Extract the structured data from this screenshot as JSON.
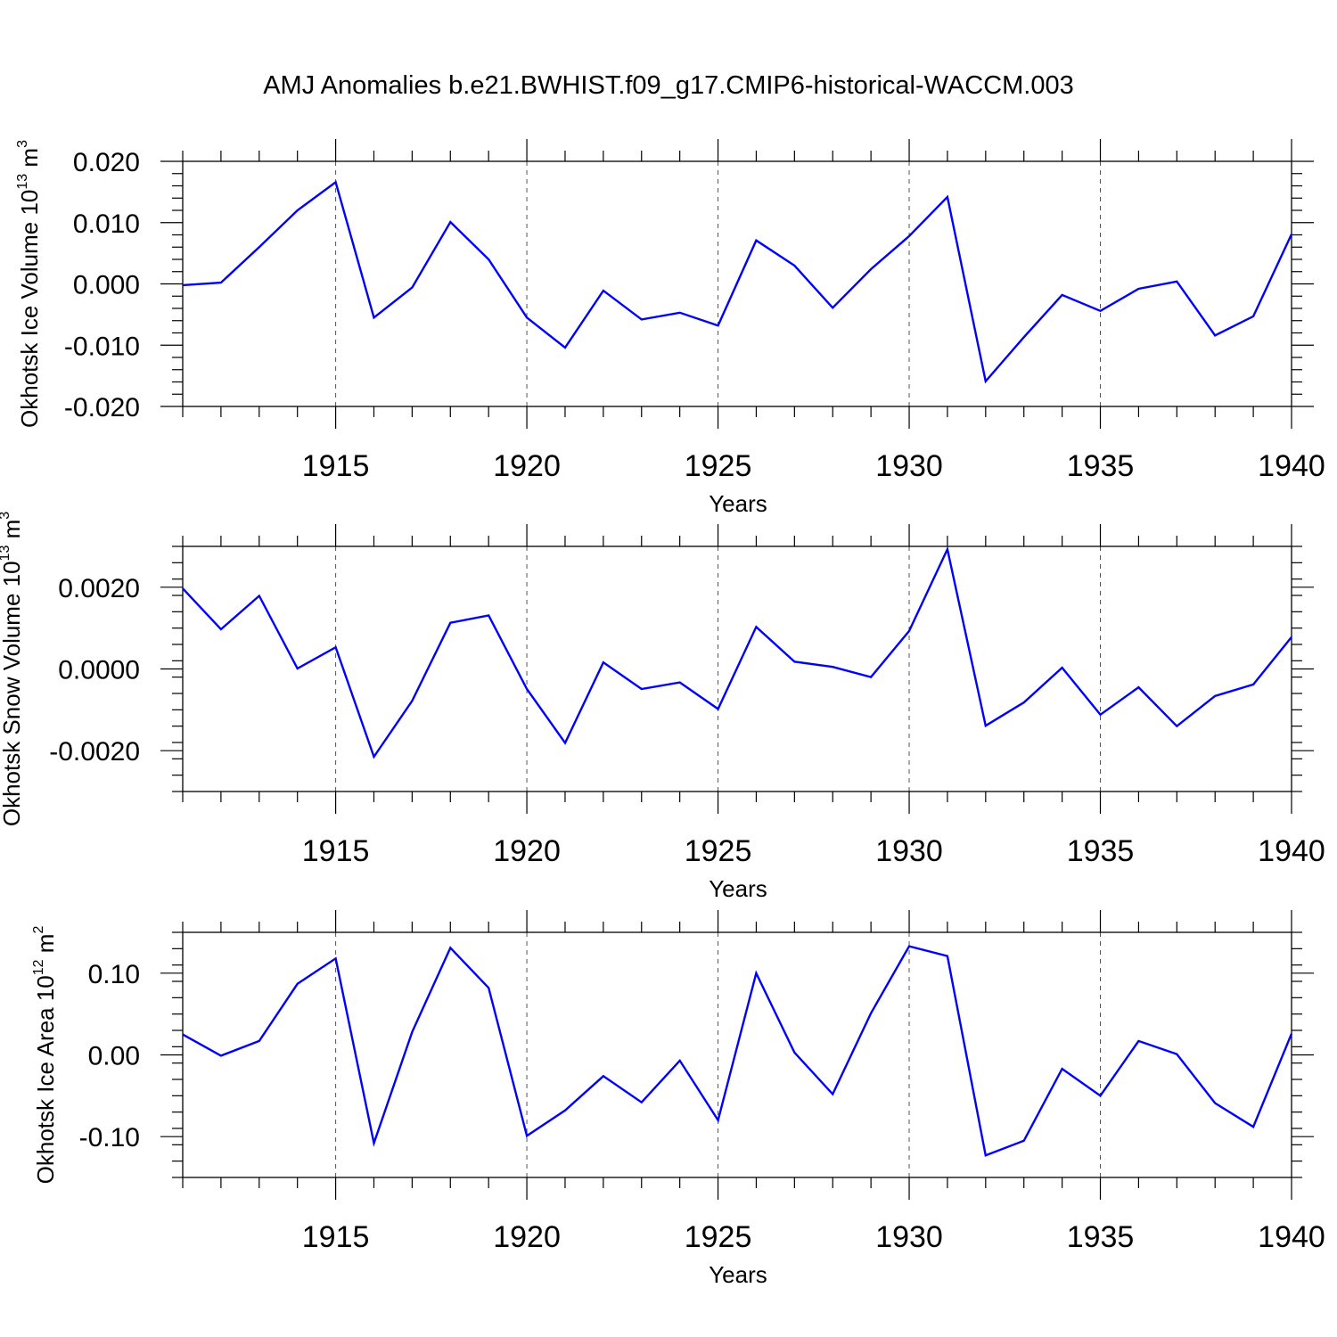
{
  "figure_title": "AMJ Anomalies b.e21.BWHIST.f09_g17.CMIP6-historical-WACCM.003",
  "line_color": "#0000ff",
  "chart_data": [
    {
      "type": "line",
      "ylabel": "Okhotsk Ice Volume 10",
      "ylabel_exponent": "13",
      "ylabel_unit": " m",
      "ylabel_unit_exponent": "3",
      "xlabel": "Years",
      "xlim": [
        1911,
        1940
      ],
      "ylim": [
        -0.02,
        0.02
      ],
      "yticks": [
        0.02,
        0.01,
        0.0,
        -0.01,
        -0.02
      ],
      "ytick_labels": [
        "0.020",
        "0.010",
        "0.000",
        "-0.010",
        "-0.020"
      ],
      "xticks": [
        1915,
        1920,
        1925,
        1930,
        1935,
        1940
      ],
      "xtick_labels": [
        "1915",
        "1920",
        "1925",
        "1930",
        "1935",
        "1940"
      ],
      "grid": "dashed vertical lines at major x ticks",
      "x": [
        1911,
        1912,
        1913,
        1914,
        1915,
        1916,
        1917,
        1918,
        1919,
        1920,
        1921,
        1922,
        1923,
        1924,
        1925,
        1926,
        1927,
        1928,
        1929,
        1930,
        1931,
        1932,
        1933,
        1934,
        1935,
        1936,
        1937,
        1938,
        1939,
        1940
      ],
      "values": [
        -0.0002,
        0.0002,
        0.006,
        0.012,
        0.0166,
        -0.0055,
        -0.0006,
        0.0101,
        0.004,
        -0.0055,
        -0.0104,
        -0.0011,
        -0.0058,
        -0.0047,
        -0.0068,
        0.0071,
        0.003,
        -0.0039,
        0.0024,
        0.0078,
        0.0142,
        -0.0159,
        -0.0087,
        -0.0018,
        -0.0044,
        -0.0008,
        0.0004,
        -0.0084,
        -0.0053,
        0.0081
      ]
    },
    {
      "type": "line",
      "ylabel": "Okhotsk Snow Volume 10",
      "ylabel_exponent": "13",
      "ylabel_unit": " m",
      "ylabel_unit_exponent": "3",
      "xlabel": "Years",
      "xlim": [
        1911,
        1940
      ],
      "ylim": [
        -0.003,
        0.003
      ],
      "yticks": [
        0.002,
        0.0,
        -0.002
      ],
      "ytick_labels": [
        "0.0020",
        "0.0000",
        "-0.0020"
      ],
      "xticks": [
        1915,
        1920,
        1925,
        1930,
        1935,
        1940
      ],
      "xtick_labels": [
        "1915",
        "1920",
        "1925",
        "1930",
        "1935",
        "1940"
      ],
      "grid": "dashed vertical lines at major x ticks",
      "x": [
        1911,
        1912,
        1913,
        1914,
        1915,
        1916,
        1917,
        1918,
        1919,
        1920,
        1921,
        1922,
        1923,
        1924,
        1925,
        1926,
        1927,
        1928,
        1929,
        1930,
        1931,
        1932,
        1933,
        1934,
        1935,
        1936,
        1937,
        1938,
        1939,
        1940
      ],
      "values": [
        0.00197,
        0.00097,
        0.00179,
        1e-05,
        0.00053,
        -0.00215,
        -0.00078,
        0.00113,
        0.00131,
        -0.00049,
        -0.00181,
        0.00016,
        -0.00049,
        -0.00033,
        -0.00098,
        0.00103,
        0.00018,
        5e-05,
        -0.0002,
        0.00093,
        0.00293,
        -0.00139,
        -0.00082,
        3e-05,
        -0.00112,
        -0.00045,
        -0.0014,
        -0.00066,
        -0.00038,
        0.00078
      ]
    },
    {
      "type": "line",
      "ylabel": "Okhotsk Ice Area 10",
      "ylabel_exponent": "12",
      "ylabel_unit": " m",
      "ylabel_unit_exponent": "2",
      "xlabel": "Years",
      "xlim": [
        1911,
        1940
      ],
      "ylim": [
        -0.15,
        0.15
      ],
      "yticks": [
        0.1,
        0.0,
        -0.1
      ],
      "ytick_labels": [
        "0.10",
        "0.00",
        "-0.10"
      ],
      "xticks": [
        1915,
        1920,
        1925,
        1930,
        1935,
        1940
      ],
      "xtick_labels": [
        "1915",
        "1920",
        "1925",
        "1930",
        "1935",
        "1940"
      ],
      "grid": "dashed vertical lines at major x ticks",
      "x": [
        1911,
        1912,
        1913,
        1914,
        1915,
        1916,
        1917,
        1918,
        1919,
        1920,
        1921,
        1922,
        1923,
        1924,
        1925,
        1926,
        1927,
        1928,
        1929,
        1930,
        1931,
        1932,
        1933,
        1934,
        1935,
        1936,
        1937,
        1938,
        1939,
        1940
      ],
      "values": [
        0.025,
        -0.001,
        0.017,
        0.087,
        0.118,
        -0.108,
        0.028,
        0.131,
        0.082,
        -0.099,
        -0.068,
        -0.026,
        -0.058,
        -0.007,
        -0.08,
        0.1,
        0.003,
        -0.048,
        0.051,
        0.133,
        0.121,
        -0.123,
        -0.105,
        -0.017,
        -0.05,
        0.017,
        0.001,
        -0.059,
        -0.088,
        0.026
      ]
    }
  ]
}
